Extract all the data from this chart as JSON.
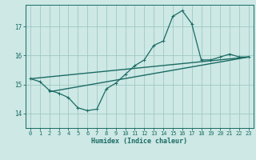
{
  "xlabel": "Humidex (Indice chaleur)",
  "background_color": "#cde8e5",
  "grid_color": "#a0c8c4",
  "line_color": "#1a6b63",
  "x_ticks": [
    0,
    1,
    2,
    3,
    4,
    5,
    6,
    7,
    8,
    9,
    10,
    11,
    12,
    13,
    14,
    15,
    16,
    17,
    18,
    19,
    20,
    21,
    22,
    23
  ],
  "ylim": [
    13.5,
    17.75
  ],
  "xlim": [
    -0.5,
    23.5
  ],
  "yticks": [
    14,
    15,
    16,
    17
  ],
  "wavy_x": [
    0,
    1,
    2,
    3,
    4,
    5,
    6,
    7,
    8,
    9,
    10,
    11,
    12,
    13,
    14,
    15,
    16,
    17,
    18,
    19,
    20,
    21,
    22,
    23
  ],
  "wavy_y": [
    15.2,
    15.1,
    14.8,
    14.7,
    14.55,
    14.2,
    14.1,
    14.15,
    14.85,
    15.05,
    15.35,
    15.65,
    15.85,
    16.35,
    16.5,
    17.35,
    17.55,
    17.1,
    15.85,
    15.85,
    15.95,
    16.05,
    15.95,
    15.95
  ],
  "line1_x": [
    0,
    23
  ],
  "line1_y": [
    15.2,
    15.95
  ],
  "line2_x": [
    2,
    23
  ],
  "line2_y": [
    14.75,
    15.95
  ],
  "tick_fontsize": 5.0,
  "xlabel_fontsize": 6.0
}
